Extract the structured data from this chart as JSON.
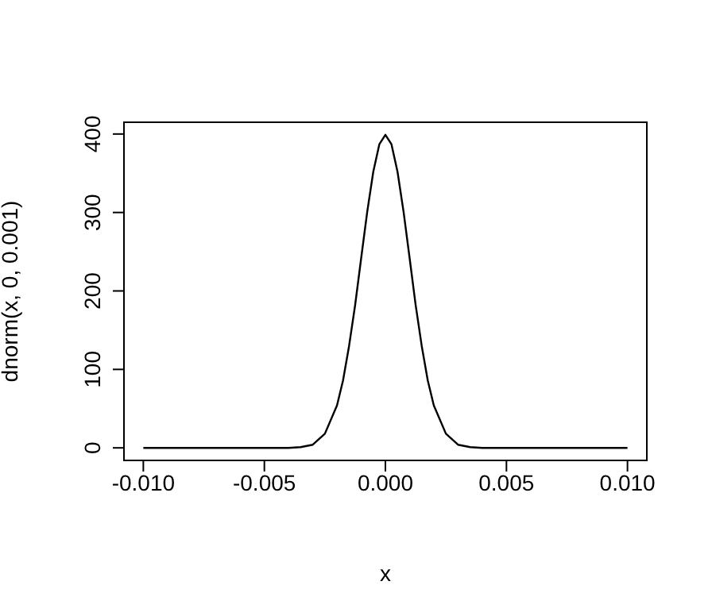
{
  "chart_data": {
    "type": "line",
    "xlabel": "x",
    "ylabel": "dnorm(x, 0, 0.001)",
    "x": [
      -0.01,
      -0.008,
      -0.006,
      -0.005,
      -0.004,
      -0.0035,
      -0.003,
      -0.0025,
      -0.002,
      -0.00175,
      -0.0015,
      -0.00125,
      -0.001,
      -0.00075,
      -0.0005,
      -0.00025,
      0,
      0.00025,
      0.0005,
      0.00075,
      0.001,
      0.00125,
      0.0015,
      0.00175,
      0.002,
      0.0025,
      0.003,
      0.0035,
      0.004,
      0.005,
      0.006,
      0.008,
      0.01
    ],
    "series": [
      {
        "color": "#000000",
        "values": [
          0,
          0,
          0,
          0,
          0,
          1,
          4,
          18,
          54,
          86,
          130,
          182,
          242,
          301,
          352,
          387,
          399,
          387,
          352,
          301,
          242,
          182,
          130,
          86,
          54,
          18,
          4,
          1,
          0,
          0,
          0,
          0,
          0
        ]
      }
    ],
    "xlim": [
      -0.0108,
      0.0108
    ],
    "ylim": [
      -16,
      415
    ],
    "xticks": [
      {
        "value": -0.01,
        "label": "-0.010"
      },
      {
        "value": -0.005,
        "label": "-0.005"
      },
      {
        "value": 0,
        "label": "0.000"
      },
      {
        "value": 0.005,
        "label": "0.005"
      },
      {
        "value": 0.01,
        "label": "0.010"
      }
    ],
    "yticks": [
      0,
      100,
      200,
      300,
      400
    ],
    "grid": false,
    "legend": false,
    "marker": "none",
    "line_style": "solid"
  }
}
